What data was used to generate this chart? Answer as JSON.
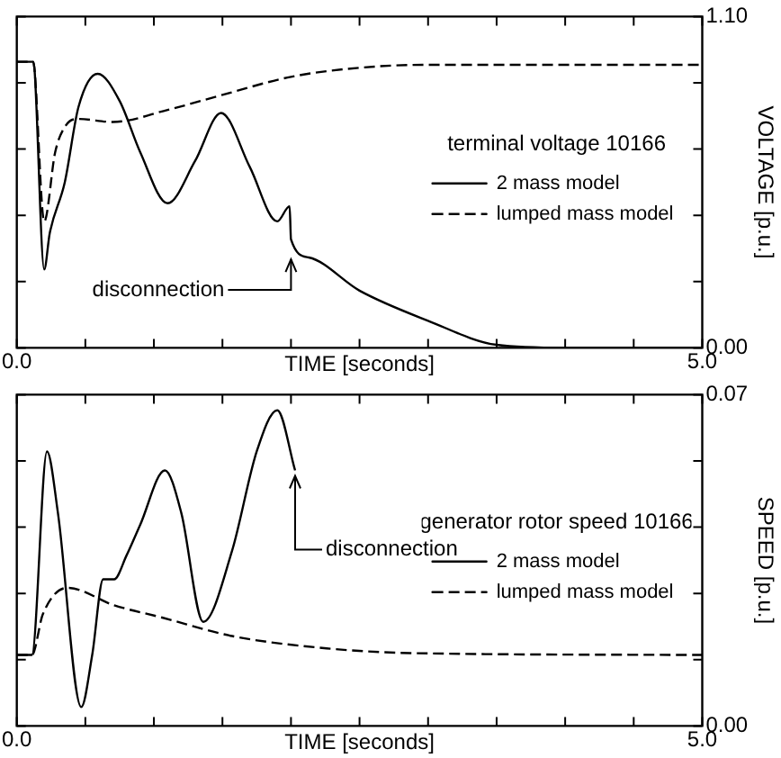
{
  "chart_data": [
    {
      "type": "line",
      "xlabel": "TIME [seconds]",
      "ylabel": "VOLTAGE [p.u.]",
      "legend_title": "terminal voltage 10166",
      "legend": "right",
      "grid": false,
      "xlim": [
        0,
        5
      ],
      "xticks": [
        {
          "value": 0,
          "label": "0.0"
        },
        {
          "value": 0.5,
          "label": null
        },
        {
          "value": 1,
          "label": null
        },
        {
          "value": 1.5,
          "label": null
        },
        {
          "value": 2,
          "label": null
        },
        {
          "value": 2.5,
          "label": null
        },
        {
          "value": 3,
          "label": null
        },
        {
          "value": 3.5,
          "label": null
        },
        {
          "value": 4,
          "label": null
        },
        {
          "value": 4.5,
          "label": null
        },
        {
          "value": 5,
          "label": "5.0"
        }
      ],
      "ylim": [
        0,
        1.1
      ],
      "yticks": [
        {
          "value": 0,
          "label": "0.00"
        },
        {
          "value": 0.22,
          "label": null
        },
        {
          "value": 0.44,
          "label": null
        },
        {
          "value": 0.66,
          "label": null
        },
        {
          "value": 0.88,
          "label": null
        },
        {
          "value": 1.1,
          "label": "1.10"
        }
      ],
      "annotations": [
        {
          "text": "disconnection",
          "x": 2.0,
          "y": 0.3
        }
      ],
      "series": [
        {
          "name": "2 mass model",
          "color": "#000000",
          "line_style": "solid",
          "x": [
            0,
            0.12,
            0.13,
            0.2,
            0.24,
            0.35,
            0.45,
            0.59,
            0.75,
            0.9,
            1.1,
            1.3,
            1.49,
            1.7,
            1.9,
            1.99,
            2.0,
            2.13,
            2.5,
            3.0,
            3.5,
            4.0,
            5.0
          ],
          "values": [
            0.95,
            0.95,
            0.92,
            0.26,
            0.38,
            0.55,
            0.8,
            0.91,
            0.82,
            0.65,
            0.48,
            0.62,
            0.78,
            0.6,
            0.42,
            0.47,
            0.36,
            0.3,
            0.19,
            0.09,
            0.01,
            0,
            0
          ]
        },
        {
          "name": "lumped mass model",
          "color": "#000000",
          "line_style": "dashed",
          "x": [
            0,
            0.12,
            0.13,
            0.2,
            0.28,
            0.36,
            0.45,
            0.7,
            1.1,
            1.5,
            2.0,
            2.5,
            3.0,
            4.0,
            5.0
          ],
          "values": [
            0.95,
            0.95,
            0.92,
            0.42,
            0.65,
            0.74,
            0.76,
            0.75,
            0.79,
            0.84,
            0.9,
            0.93,
            0.94,
            0.94,
            0.94
          ]
        }
      ]
    },
    {
      "type": "line",
      "xlabel": "TIME [seconds]",
      "ylabel": "SPEED [p.u.]",
      "legend_title": "generator rotor speed 10166",
      "legend": "right",
      "grid": false,
      "xlim": [
        0,
        5
      ],
      "xticks": [
        {
          "value": 0,
          "label": "0.0"
        },
        {
          "value": 0.5,
          "label": null
        },
        {
          "value": 1,
          "label": null
        },
        {
          "value": 1.5,
          "label": null
        },
        {
          "value": 2,
          "label": null
        },
        {
          "value": 2.5,
          "label": null
        },
        {
          "value": 3,
          "label": null
        },
        {
          "value": 3.5,
          "label": null
        },
        {
          "value": 4,
          "label": null
        },
        {
          "value": 4.5,
          "label": null
        },
        {
          "value": 5,
          "label": "5.0"
        }
      ],
      "ylim": [
        0,
        0.07
      ],
      "yticks": [
        {
          "value": 0,
          "label": "0.00"
        },
        {
          "value": 0.014,
          "label": null
        },
        {
          "value": 0.028,
          "label": null
        },
        {
          "value": 0.042,
          "label": null
        },
        {
          "value": 0.056,
          "label": null
        },
        {
          "value": 0.07,
          "label": "0.07"
        }
      ],
      "annotations": [
        {
          "text": "disconnection",
          "x": 2.03,
          "y": 0.054
        }
      ],
      "series": [
        {
          "name": "2 mass model",
          "color": "#000000",
          "line_style": "solid",
          "x": [
            0,
            0.11,
            0.22,
            0.3,
            0.47,
            0.55,
            0.63,
            0.71,
            0.8,
            0.9,
            1.08,
            1.2,
            1.36,
            1.57,
            1.75,
            1.9,
            2.03
          ],
          "values": [
            0.015,
            0.015,
            0.058,
            0.045,
            0.004,
            0.015,
            0.031,
            0.031,
            0.036,
            0.0425,
            0.054,
            0.045,
            0.022,
            0.037,
            0.058,
            0.0667,
            0.054
          ]
        },
        {
          "name": "lumped mass model",
          "color": "#000000",
          "line_style": "dashed",
          "x": [
            0,
            0.11,
            0.19,
            0.37,
            0.71,
            1.06,
            1.57,
            2.26,
            2.87,
            5.0
          ],
          "values": [
            0.015,
            0.015,
            0.0236,
            0.0292,
            0.0255,
            0.0229,
            0.019,
            0.0164,
            0.0154,
            0.015
          ]
        }
      ]
    }
  ]
}
